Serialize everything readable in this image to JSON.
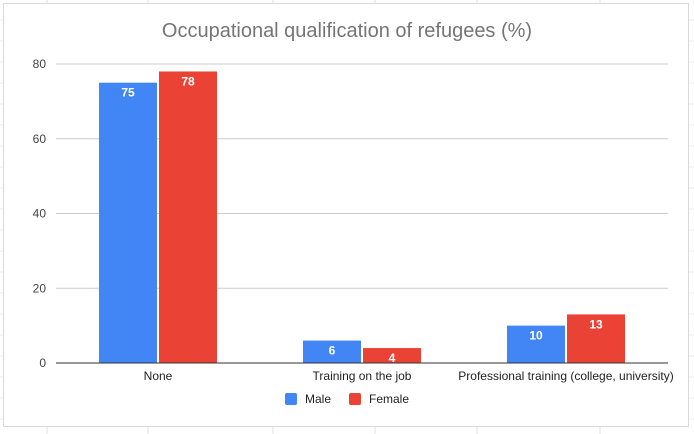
{
  "chart_data": {
    "type": "bar",
    "title": "Occupational qualification of refugees (%)",
    "categories": [
      "None",
      "Training on the job",
      "Professional training (college, university)"
    ],
    "series": [
      {
        "name": "Male",
        "values": [
          75,
          6,
          10
        ],
        "color": "#4285f4"
      },
      {
        "name": "Female",
        "values": [
          78,
          4,
          13
        ],
        "color": "#ea4335"
      }
    ],
    "xlabel": "",
    "ylabel": "",
    "ylim": [
      0,
      80
    ],
    "yticks": [
      0,
      20,
      40,
      60,
      80
    ],
    "grid": true,
    "legend_position": "bottom",
    "data_labels": true
  }
}
